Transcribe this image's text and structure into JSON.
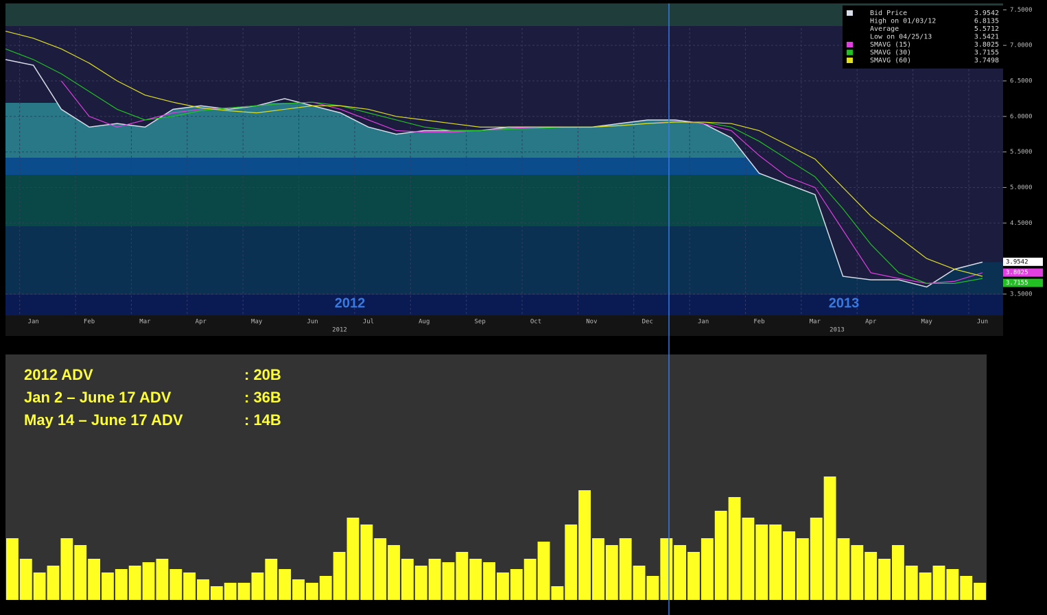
{
  "chart_data": [
    {
      "type": "line",
      "categories": [
        null,
        "Jan",
        null,
        "Feb",
        null,
        "Mar",
        null,
        "Apr",
        null,
        "May",
        null,
        "Jun",
        null,
        "Jul",
        null,
        "Aug",
        null,
        "Sep",
        null,
        "Oct",
        null,
        "Nov",
        null,
        "Dec",
        null,
        "Jan",
        null,
        "Feb",
        null,
        "Mar",
        null,
        "Apr",
        null,
        "May",
        null,
        "Jun"
      ],
      "series": [
        {
          "name": "Bid Price",
          "color": "#d8dde8",
          "values": [
            6.8,
            6.72,
            6.1,
            5.85,
            5.9,
            5.85,
            6.1,
            6.15,
            6.1,
            6.15,
            6.25,
            6.15,
            6.05,
            5.85,
            5.75,
            5.8,
            5.8,
            5.8,
            5.85,
            5.85,
            5.85,
            5.85,
            5.9,
            5.95,
            5.95,
            5.9,
            5.7,
            5.2,
            5.05,
            4.9,
            3.75,
            3.7,
            3.7,
            3.6,
            3.85,
            3.95
          ]
        },
        {
          "name": "SMAVG (15)",
          "color": "#e040e0",
          "values": [
            null,
            null,
            6.5,
            6.0,
            5.85,
            5.95,
            6.05,
            6.1,
            6.12,
            6.15,
            6.18,
            6.2,
            6.1,
            5.95,
            5.8,
            5.78,
            5.78,
            5.8,
            5.83,
            5.85,
            5.85,
            5.85,
            5.87,
            5.9,
            5.93,
            5.9,
            5.8,
            5.45,
            5.15,
            5.0,
            4.4,
            3.8,
            3.72,
            3.65,
            3.68,
            3.8
          ]
        },
        {
          "name": "SMAVG (30)",
          "color": "#22c022",
          "values": [
            6.95,
            6.8,
            6.6,
            6.35,
            6.1,
            5.95,
            6.0,
            6.08,
            6.12,
            6.15,
            6.18,
            6.2,
            6.15,
            6.05,
            5.95,
            5.85,
            5.8,
            5.8,
            5.82,
            5.83,
            5.85,
            5.85,
            5.87,
            5.9,
            5.92,
            5.92,
            5.85,
            5.65,
            5.4,
            5.15,
            4.7,
            4.2,
            3.8,
            3.65,
            3.65,
            3.72
          ]
        },
        {
          "name": "SMAVG (60)",
          "color": "#e0e020",
          "values": [
            7.2,
            7.1,
            6.95,
            6.75,
            6.5,
            6.3,
            6.2,
            6.12,
            6.08,
            6.05,
            6.1,
            6.15,
            6.15,
            6.1,
            6.0,
            5.95,
            5.9,
            5.85,
            5.85,
            5.85,
            5.85,
            5.85,
            5.87,
            5.9,
            5.92,
            5.92,
            5.9,
            5.8,
            5.6,
            5.4,
            5.0,
            4.6,
            4.3,
            4.0,
            3.85,
            3.75
          ]
        }
      ],
      "legend_values": [
        3.9542,
        3.8025,
        3.7155,
        3.7498
      ],
      "legend_extra": [
        {
          "label": "High on 01/03/12",
          "value": 6.8135
        },
        {
          "label": "Average",
          "value": 5.5712
        },
        {
          "label": "Low on 04/25/13",
          "value": 3.5421
        }
      ],
      "ylim": [
        3.2,
        7.59
      ],
      "yticks": [
        {
          "value": 3.5,
          "label": "3.5000"
        },
        {
          "value": 4.5,
          "label": "4.5000"
        },
        {
          "value": 5,
          "label": "5.0000"
        },
        {
          "value": 5.5,
          "label": "5.5000"
        },
        {
          "value": 6,
          "label": "6.0000"
        },
        {
          "value": 6.5,
          "label": "6.5000"
        },
        {
          "value": 7,
          "label": "7.0000"
        },
        {
          "value": 7.5,
          "label": "7.5000"
        }
      ],
      "year_labels": [
        "2012",
        "2013"
      ],
      "overlay_labels": [
        "2012",
        "2013"
      ],
      "grid": true
    },
    {
      "type": "bar",
      "color": "#ffff22",
      "values": [
        90,
        60,
        40,
        50,
        90,
        80,
        60,
        40,
        45,
        50,
        55,
        60,
        45,
        40,
        30,
        20,
        25,
        25,
        40,
        60,
        45,
        30,
        25,
        35,
        70,
        120,
        110,
        90,
        80,
        60,
        50,
        60,
        55,
        70,
        60,
        55,
        40,
        45,
        60,
        85,
        20,
        110,
        160,
        90,
        80,
        90,
        50,
        35,
        90,
        80,
        70,
        90,
        130,
        150,
        120,
        110,
        110,
        100,
        90,
        120,
        180,
        90,
        80,
        70,
        60,
        80,
        50,
        40,
        50,
        45,
        35,
        25
      ],
      "ylim": [
        0,
        358
      ],
      "stats": [
        {
          "label": "2012 ADV",
          "value": ":  20B"
        },
        {
          "label": "Jan 2 – June 17 ADV",
          "value": ":  36B"
        },
        {
          "label": "May 14 – June 17 ADV",
          "value": ":  14B"
        }
      ]
    }
  ]
}
